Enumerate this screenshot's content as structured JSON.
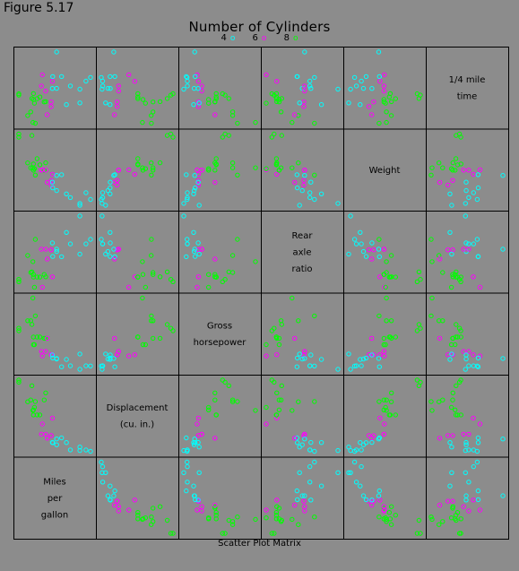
{
  "figure_label": "Figure 5.17",
  "chart_data": {
    "type": "scatter",
    "kind": "scatter-plot-matrix",
    "title": "Number of Cylinders",
    "caption": "Scatter Plot Matrix",
    "legend": [
      {
        "name": "4",
        "color": "#00ffff"
      },
      {
        "name": "6",
        "color": "#ff00ff"
      },
      {
        "name": "8",
        "color": "#00ff00"
      }
    ],
    "variables": [
      {
        "key": "mpg",
        "label_lines": [
          "Miles",
          "per",
          "gallon"
        ]
      },
      {
        "key": "disp",
        "label_lines": [
          "Displacement",
          "(cu. in.)"
        ]
      },
      {
        "key": "hp",
        "label_lines": [
          "Gross",
          "horsepower"
        ]
      },
      {
        "key": "drat",
        "label_lines": [
          "Rear",
          "axle",
          "ratio"
        ]
      },
      {
        "key": "wt",
        "label_lines": [
          "Weight"
        ]
      },
      {
        "key": "qsec",
        "label_lines": [
          "1/4 mile",
          "time"
        ]
      }
    ],
    "columns": [
      "mpg",
      "cyl",
      "disp",
      "hp",
      "drat",
      "wt",
      "qsec"
    ],
    "rows": [
      [
        21.0,
        6,
        160.0,
        110,
        3.9,
        2.62,
        16.46
      ],
      [
        21.0,
        6,
        160.0,
        110,
        3.9,
        2.875,
        17.02
      ],
      [
        22.8,
        4,
        108.0,
        93,
        3.85,
        2.32,
        18.61
      ],
      [
        21.4,
        6,
        258.0,
        110,
        3.08,
        3.215,
        19.44
      ],
      [
        18.7,
        8,
        360.0,
        175,
        3.15,
        3.44,
        17.02
      ],
      [
        18.1,
        6,
        225.0,
        105,
        2.76,
        3.46,
        20.22
      ],
      [
        14.3,
        8,
        360.0,
        245,
        3.21,
        3.57,
        15.84
      ],
      [
        24.4,
        4,
        146.7,
        62,
        3.69,
        3.19,
        20.0
      ],
      [
        22.8,
        4,
        140.8,
        95,
        3.92,
        3.15,
        22.9
      ],
      [
        19.2,
        6,
        167.6,
        123,
        3.92,
        3.44,
        18.3
      ],
      [
        17.8,
        6,
        167.6,
        123,
        3.92,
        3.44,
        18.9
      ],
      [
        16.4,
        8,
        275.8,
        180,
        3.07,
        4.07,
        17.4
      ],
      [
        17.3,
        8,
        275.8,
        180,
        3.07,
        3.73,
        17.6
      ],
      [
        15.2,
        8,
        275.8,
        180,
        3.07,
        3.78,
        18.0
      ],
      [
        10.4,
        8,
        472.0,
        205,
        2.93,
        5.25,
        17.98
      ],
      [
        10.4,
        8,
        460.0,
        215,
        3.0,
        5.424,
        17.82
      ],
      [
        14.7,
        8,
        440.0,
        230,
        3.23,
        5.345,
        17.42
      ],
      [
        32.4,
        4,
        78.7,
        66,
        4.08,
        2.2,
        19.47
      ],
      [
        30.4,
        4,
        75.7,
        52,
        4.93,
        1.615,
        18.52
      ],
      [
        33.9,
        4,
        71.1,
        65,
        4.22,
        1.835,
        19.9
      ],
      [
        21.5,
        4,
        120.1,
        97,
        3.7,
        2.465,
        20.01
      ],
      [
        15.5,
        8,
        318.0,
        150,
        2.76,
        3.52,
        16.87
      ],
      [
        15.2,
        8,
        304.0,
        150,
        3.15,
        3.435,
        17.3
      ],
      [
        13.3,
        8,
        350.0,
        245,
        3.73,
        3.84,
        15.41
      ],
      [
        19.2,
        8,
        400.0,
        175,
        3.08,
        3.845,
        17.05
      ],
      [
        27.3,
        4,
        79.0,
        66,
        4.08,
        1.935,
        18.9
      ],
      [
        26.0,
        4,
        120.3,
        91,
        4.43,
        2.14,
        16.7
      ],
      [
        30.4,
        4,
        95.1,
        113,
        3.77,
        1.513,
        16.9
      ],
      [
        15.8,
        8,
        351.0,
        264,
        4.22,
        3.17,
        14.5
      ],
      [
        19.7,
        6,
        145.0,
        175,
        3.62,
        2.77,
        15.5
      ],
      [
        15.0,
        8,
        301.0,
        335,
        3.54,
        3.57,
        14.6
      ],
      [
        21.4,
        4,
        121.0,
        109,
        4.11,
        2.78,
        18.6
      ]
    ],
    "axis_ranges": {
      "mpg": [
        10.4,
        33.9
      ],
      "disp": [
        71.1,
        472.0
      ],
      "hp": [
        52,
        335
      ],
      "drat": [
        2.76,
        4.93
      ],
      "wt": [
        1.513,
        5.424
      ],
      "qsec": [
        14.5,
        22.9
      ]
    },
    "marker": "open-circle",
    "grid": false
  }
}
